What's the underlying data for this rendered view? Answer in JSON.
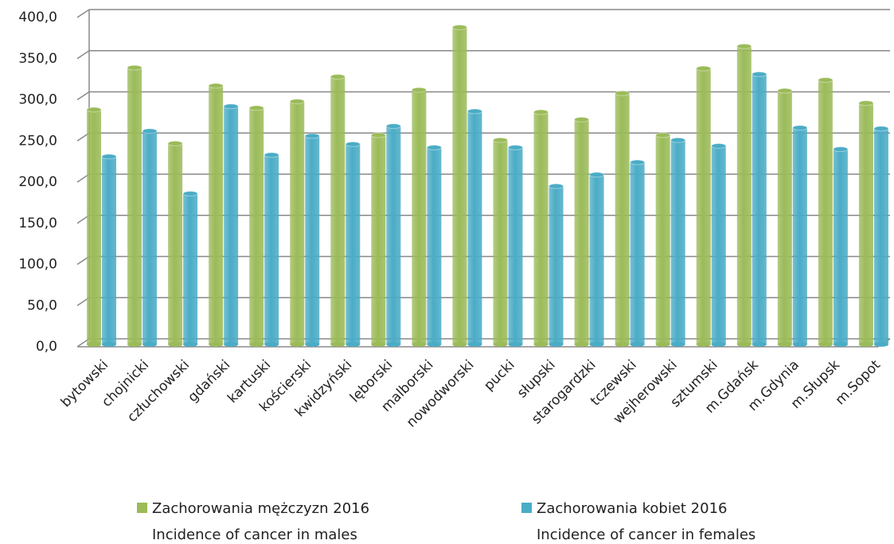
{
  "chart_data": {
    "type": "bar",
    "categories": [
      "bytowski",
      "chojnicki",
      "człuchowski",
      "gdański",
      "kartuski",
      "kościerski",
      "kwidzyński",
      "lęborski",
      "malborski",
      "nowodworski",
      "pucki",
      "słupski",
      "starogardzki",
      "tczewski",
      "wejherowski",
      "sztumski",
      "m.Gdańsk",
      "m.Gdynia",
      "m.Słupsk",
      "m.Sopot"
    ],
    "series": [
      {
        "name": "Zachorowania mężczyzn 2016",
        "name_en": "Incidence of cancer in males",
        "color": "#9bbb59",
        "values": [
          288,
          339,
          247,
          317,
          290,
          298,
          328,
          257,
          312,
          388,
          251,
          285,
          276,
          308,
          257,
          338,
          365,
          311,
          324,
          296
        ]
      },
      {
        "name": "Zachorowania kobiet 2016",
        "name_en": "Incidence of cancer in females",
        "color": "#4bacc6",
        "values": [
          231,
          262,
          186,
          292,
          233,
          256,
          246,
          268,
          242,
          286,
          242,
          195,
          209,
          224,
          251,
          244,
          331,
          266,
          240,
          265
        ]
      }
    ],
    "ylim": [
      0,
      400
    ],
    "yticks": [
      {
        "value": 0,
        "label": "0,0"
      },
      {
        "value": 50,
        "label": "50,0"
      },
      {
        "value": 100,
        "label": "100,0"
      },
      {
        "value": 150,
        "label": "150,0"
      },
      {
        "value": 200,
        "label": "200,0"
      },
      {
        "value": 250,
        "label": "250,0"
      },
      {
        "value": 300,
        "label": "300,0"
      },
      {
        "value": 350,
        "label": "350,0"
      },
      {
        "value": 400,
        "label": "400,0"
      }
    ],
    "grid": true,
    "legend": "bottom"
  }
}
